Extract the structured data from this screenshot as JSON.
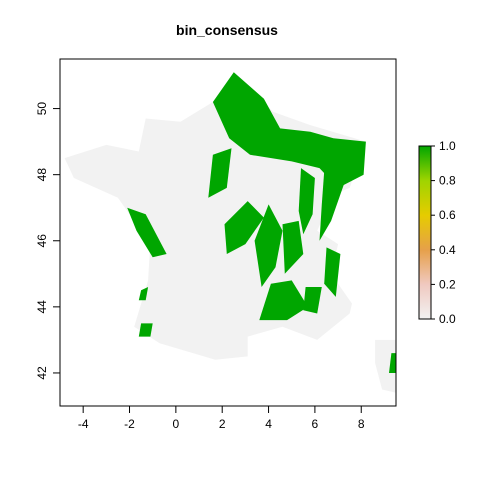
{
  "chart_data": {
    "type": "heatmap",
    "title": "bin_consensus",
    "xlabel": "",
    "ylabel": "",
    "xlim": [
      -5,
      9.5
    ],
    "ylim": [
      41,
      51.5
    ],
    "x_ticks": [
      -4,
      -2,
      0,
      2,
      4,
      6,
      8
    ],
    "y_ticks": [
      42,
      44,
      46,
      48,
      50
    ],
    "legend": {
      "placement": "right",
      "range": [
        0,
        1
      ],
      "ticks": [
        "0.0",
        "0.2",
        "0.4",
        "0.6",
        "0.8",
        "1.0"
      ],
      "colors": [
        "#f2f2f2",
        "#f0c9c0",
        "#e6a04a",
        "#e6cc00",
        "#9fd400",
        "#00a600"
      ]
    },
    "colors": {
      "background": "#f2f2f2",
      "present": "#00a600"
    },
    "background_value": 0,
    "present_value": 1,
    "background_polygons": [
      [
        [
          -4.8,
          48.5
        ],
        [
          -3.0,
          48.9
        ],
        [
          -1.6,
          48.7
        ],
        [
          -1.3,
          49.7
        ],
        [
          0.2,
          49.6
        ],
        [
          1.6,
          50.2
        ],
        [
          2.5,
          51.1
        ],
        [
          4.2,
          49.9
        ],
        [
          5.8,
          49.5
        ],
        [
          8.2,
          49.0
        ],
        [
          7.5,
          47.6
        ],
        [
          6.8,
          47.4
        ],
        [
          6.1,
          46.3
        ],
        [
          7.0,
          45.9
        ],
        [
          6.7,
          45.0
        ],
        [
          7.6,
          44.1
        ],
        [
          7.5,
          43.8
        ],
        [
          6.1,
          43.0
        ],
        [
          4.6,
          43.4
        ],
        [
          3.1,
          43.1
        ],
        [
          3.1,
          42.5
        ],
        [
          1.7,
          42.4
        ],
        [
          -0.7,
          42.9
        ],
        [
          -1.8,
          43.4
        ],
        [
          -1.2,
          44.8
        ],
        [
          -1.1,
          46.0
        ],
        [
          -2.0,
          46.8
        ],
        [
          -2.5,
          47.3
        ],
        [
          -4.4,
          47.9
        ],
        [
          -4.8,
          48.5
        ]
      ],
      [
        [
          8.6,
          43.0
        ],
        [
          9.5,
          43.0
        ],
        [
          9.5,
          41.4
        ],
        [
          8.9,
          41.5
        ],
        [
          8.6,
          42.3
        ],
        [
          8.6,
          43.0
        ]
      ]
    ],
    "presence_polygons": [
      [
        [
          1.6,
          50.2
        ],
        [
          2.5,
          51.1
        ],
        [
          3.8,
          50.3
        ],
        [
          4.5,
          49.4
        ],
        [
          5.8,
          49.3
        ],
        [
          6.8,
          49.1
        ],
        [
          8.2,
          49.0
        ],
        [
          8.1,
          48.0
        ],
        [
          7.0,
          47.6
        ],
        [
          6.2,
          48.2
        ],
        [
          5.0,
          48.4
        ],
        [
          3.2,
          48.6
        ],
        [
          2.3,
          49.1
        ],
        [
          1.6,
          50.2
        ]
      ],
      [
        [
          1.6,
          48.6
        ],
        [
          2.4,
          48.8
        ],
        [
          2.2,
          47.6
        ],
        [
          1.4,
          47.3
        ],
        [
          1.6,
          48.6
        ]
      ],
      [
        [
          5.4,
          48.2
        ],
        [
          6.0,
          47.9
        ],
        [
          5.9,
          46.8
        ],
        [
          5.5,
          46.2
        ],
        [
          5.3,
          46.9
        ],
        [
          5.4,
          48.2
        ]
      ],
      [
        [
          6.4,
          48.1
        ],
        [
          7.3,
          47.8
        ],
        [
          6.7,
          46.6
        ],
        [
          6.2,
          46.0
        ],
        [
          6.3,
          47.1
        ],
        [
          6.4,
          48.1
        ]
      ],
      [
        [
          2.1,
          46.5
        ],
        [
          3.1,
          47.2
        ],
        [
          3.8,
          46.7
        ],
        [
          3.0,
          45.9
        ],
        [
          2.2,
          45.6
        ],
        [
          2.1,
          46.5
        ]
      ],
      [
        [
          3.4,
          46.0
        ],
        [
          4.0,
          47.1
        ],
        [
          4.6,
          46.3
        ],
        [
          4.3,
          45.2
        ],
        [
          3.7,
          44.6
        ],
        [
          3.4,
          46.0
        ]
      ],
      [
        [
          4.6,
          46.5
        ],
        [
          5.3,
          46.6
        ],
        [
          5.5,
          45.6
        ],
        [
          4.7,
          45.0
        ],
        [
          4.6,
          46.5
        ]
      ],
      [
        [
          -2.1,
          47.0
        ],
        [
          -1.3,
          46.8
        ],
        [
          -0.4,
          45.6
        ],
        [
          -1.0,
          45.5
        ],
        [
          -1.7,
          46.3
        ],
        [
          -2.1,
          47.0
        ]
      ],
      [
        [
          6.5,
          45.8
        ],
        [
          7.1,
          45.6
        ],
        [
          6.9,
          44.3
        ],
        [
          6.4,
          44.7
        ],
        [
          6.5,
          45.8
        ]
      ],
      [
        [
          3.6,
          43.6
        ],
        [
          4.8,
          43.6
        ],
        [
          5.7,
          44.0
        ],
        [
          5.0,
          44.8
        ],
        [
          4.1,
          44.7
        ],
        [
          3.6,
          43.6
        ]
      ],
      [
        [
          -1.5,
          44.5
        ],
        [
          -1.2,
          44.6
        ],
        [
          -1.3,
          44.2
        ],
        [
          -1.6,
          44.2
        ],
        [
          -1.5,
          44.5
        ]
      ],
      [
        [
          -1.5,
          43.5
        ],
        [
          -1.0,
          43.5
        ],
        [
          -1.1,
          43.1
        ],
        [
          -1.6,
          43.1
        ],
        [
          -1.5,
          43.5
        ]
      ],
      [
        [
          5.6,
          44.6
        ],
        [
          6.3,
          44.6
        ],
        [
          6.1,
          43.8
        ],
        [
          5.5,
          43.9
        ],
        [
          5.6,
          44.6
        ]
      ],
      [
        [
          9.3,
          42.6
        ],
        [
          9.5,
          42.6
        ],
        [
          9.5,
          42.0
        ],
        [
          9.2,
          42.0
        ],
        [
          9.3,
          42.6
        ]
      ]
    ]
  }
}
